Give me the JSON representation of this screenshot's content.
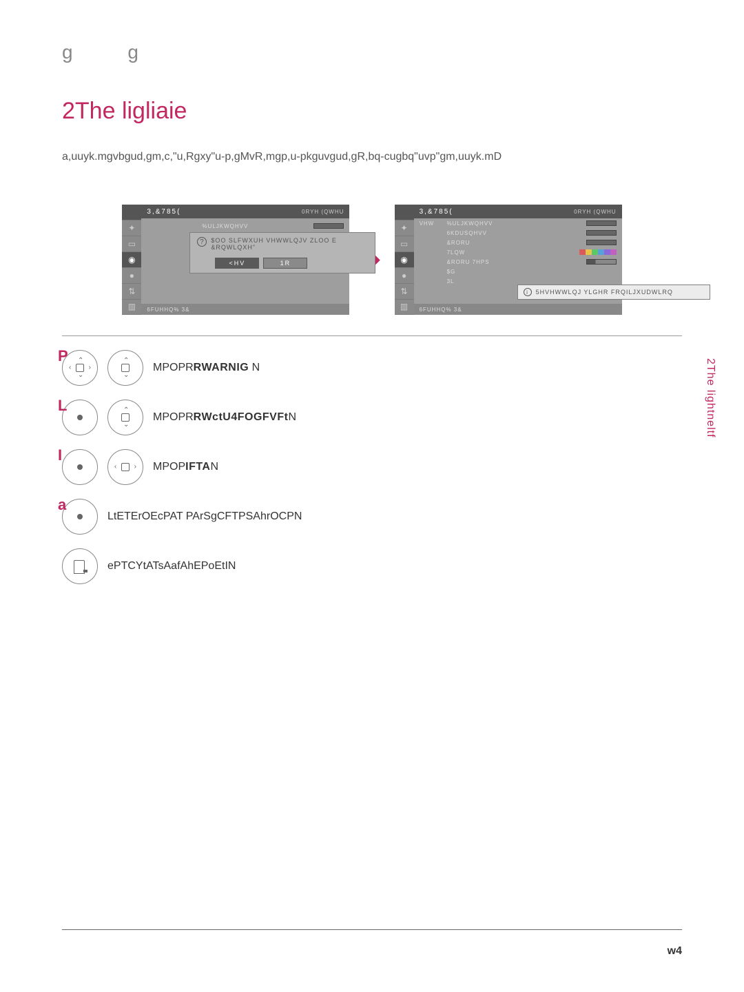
{
  "accent_color": "#c22760",
  "top_marker": "g    g",
  "title": "2The ligliaie",
  "description": "a,uuyk.mgvbgud,gm,c,\"u,Rgxy\"u-p,gMvR,mgp,u-pkguvgud,gR,bq-cugbq\"uvp\"gm,uuyk.mD",
  "arrow_color": "#c22760",
  "screen_left": {
    "header": "3,&785(",
    "header_right": "0RYH  (QWHU",
    "rows": [
      {
        "label": "%ULJKWQHVV"
      }
    ],
    "dialog": {
      "line1": "$OO SLFWXUH VHWWLQJV ZLOO E",
      "line2": "&RQWLQXH\"",
      "btn_yes": "<HV",
      "btn_no": "1R"
    },
    "footer": "6FUHHQ% 3&"
  },
  "screen_right": {
    "header": "3,&785(",
    "header_right": "0RYH  (QWHU",
    "left_label": "VHW",
    "rows": [
      {
        "label": "%ULJKWQHVV"
      },
      {
        "label": "6KDUSQHVV"
      },
      {
        "label": "&RORU"
      },
      {
        "label": "7LQW"
      },
      {
        "label": "&RORU 7HPS"
      },
      {
        "label": "$G"
      },
      {
        "label": "3L"
      }
    ],
    "tint_colors": [
      "#d85a5a",
      "#e8c24a",
      "#5ac86a",
      "#5aa0d8",
      "#8a6ad8",
      "#c060c0"
    ],
    "tooltip": "5HVHWWLQJ YLGHR FRQILJXUDWLRQ",
    "footer": "6FUHHQ% 3&"
  },
  "steps": [
    {
      "num": "P",
      "icons": [
        "dpad-full",
        "dpad-ud"
      ],
      "text_prefix": "MPOPR",
      "text_bold": "RWARNIG",
      "text_suffix": " N"
    },
    {
      "num": "L",
      "icons": [
        "dot",
        "dpad-ud"
      ],
      "text_prefix": "MPOPR",
      "text_bold": "RWctU4FOGFVFt",
      "text_suffix": "N"
    },
    {
      "num": "I",
      "icons": [
        "dot",
        "dpad-lr"
      ],
      "text_prefix": "MPOP",
      "text_bold": "IFTA",
      "text_suffix": "N"
    },
    {
      "num": "a",
      "icons": [
        "dot"
      ],
      "text_plain": "LtETErOEcPAT PArSgCFTPSAhrOCPN"
    },
    {
      "num": "",
      "icons": [
        "return"
      ],
      "text_plain": "ePTCYtATsAafAhEPoEtIN"
    }
  ],
  "side_tab": "2The lightneltf",
  "page_number": "w4"
}
